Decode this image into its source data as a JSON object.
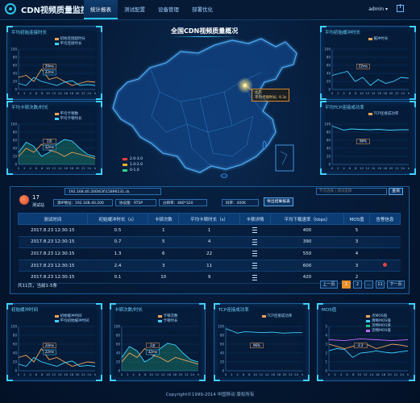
{
  "header": {
    "app_title": "CDN视频质量监控",
    "tabs": [
      "统计报表",
      "测试配置",
      "设备管理",
      "部署优化"
    ],
    "active_tab": 0,
    "user": "admin",
    "user_caret": "▾"
  },
  "panels": {
    "p1": {
      "title": "平均初始连接时长",
      "legend": [
        "初始连接超时长",
        "平均连接时长"
      ],
      "tips": [
        "20ms",
        "22ms"
      ]
    },
    "p2": {
      "title": "平均卡顿次数/时长",
      "legend": [
        "平均卡顿数",
        "平均卡顿时长"
      ],
      "tips": [
        "2次",
        "32ms"
      ]
    },
    "p3": {
      "title": "平均初始缓冲时长",
      "legend": [
        "缓冲时长"
      ],
      "tips": [
        "22ms"
      ]
    },
    "p4": {
      "title": "平均TCP连接成功率",
      "legend": [
        "TCP连接成功率"
      ],
      "tips": [
        "96%"
      ]
    },
    "p5": {
      "title": "初始缓冲时间",
      "legend": [
        "初始缓冲时间",
        "平均初始缓冲时间"
      ],
      "tips": [
        "20ms",
        "22ms"
      ]
    },
    "p6": {
      "title": "卡顿次数/时长",
      "legend": [
        "卡顿次数",
        "卡顿时长"
      ],
      "tips": [
        "2次",
        "32ms"
      ]
    },
    "p7": {
      "title": "TCP连接成功率",
      "legend": [
        "TCP连接成功率"
      ],
      "tips": [
        "96%"
      ]
    },
    "p8": {
      "title": "MOS值",
      "legend": [
        "点MOS值",
        "清晰MOS值",
        "流畅MOS值",
        "流畅MOS值"
      ],
      "tips": [
        "2.2"
      ]
    }
  },
  "axis": {
    "x_ticks": [
      "0",
      "2",
      "4",
      "6",
      "8",
      "10",
      "12",
      "14",
      "16",
      "18",
      "20",
      "22",
      "24",
      "h"
    ],
    "y_ticks_100": [
      "100",
      "80",
      "60",
      "40",
      "20",
      "0"
    ],
    "y_ticks_pct": [
      "100",
      "80",
      "60",
      "40",
      "20",
      "0"
    ],
    "y_ticks_mos": [
      "5",
      "4",
      "3",
      "2",
      "1",
      "0"
    ]
  },
  "map": {
    "title": "全国CDN视频质量概况",
    "tooltip_line1": "北京",
    "tooltip_line2": "平均卡顿时长: 9.3s",
    "legend": [
      {
        "label": "2.0-3.0",
        "color": "#e0413b"
      },
      {
        "label": "1.0-2.0",
        "color": "#e8b22a"
      },
      {
        "label": "0-1.0",
        "color": "#2fd38a"
      }
    ]
  },
  "summary": {
    "count": "17",
    "label": "测试站",
    "ip_full": "192.168.40.200\\63f\\15896131.ck",
    "ip": "源IP地址：192.168.40.200",
    "protocol": "协议版：RTSP",
    "resolution": "分辨率：480*320",
    "bitrate": "码率：400K",
    "export": "导出结果报表",
    "search_placeholder": "节点选择 | 测试选择",
    "search_btn": "查询"
  },
  "table": {
    "headers": [
      "测试时间",
      "初始缓冲时长（s）",
      "卡顿次数",
      "平均卡顿时长（s）",
      "卡顿详情",
      "平均下载速率（kbps）",
      "MOS值",
      "告警信息"
    ],
    "rows": [
      [
        "2017.8.23  12:30:15",
        "0.5",
        "1",
        "1",
        "",
        "400",
        "5",
        ""
      ],
      [
        "2017.8.23  12:30:15",
        "0.7",
        "5",
        "4",
        "",
        "390",
        "3",
        ""
      ],
      [
        "2017.8.23  12:30:15",
        "1.3",
        "6",
        "22",
        "",
        "550",
        "4",
        ""
      ],
      [
        "2017.8.23  12:30:15",
        "2.4",
        "3",
        "11",
        "",
        "600",
        "3",
        "!"
      ],
      [
        "2017.8.23  12:30:15",
        "0.1",
        "10",
        "9",
        "",
        "420",
        "2",
        ""
      ]
    ],
    "total": "共11页，当前1-5条",
    "pager": [
      "上一页",
      "1",
      "2",
      "…",
      "11",
      "下一页"
    ]
  },
  "footer": "Copyright©1999-2014  中国移动 版权所有"
}
